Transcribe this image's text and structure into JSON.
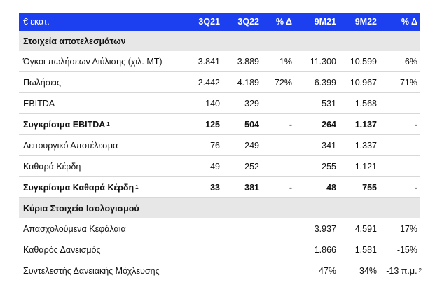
{
  "header": {
    "label": "€ εκατ.",
    "cols": [
      "3Q21",
      "3Q22",
      "% Δ",
      "9M21",
      "9M22",
      "% Δ"
    ]
  },
  "section1": {
    "title": "Στοιχεία αποτελεσμάτων"
  },
  "results": [
    {
      "label": "Όγκοι πωλήσεων Διύλισης (χιλ. ΜΤ)",
      "sup": "",
      "bold": false,
      "values": [
        "3.841",
        "3.889",
        "1%",
        "11.300",
        "10.599",
        "-6%"
      ]
    },
    {
      "label": "Πωλήσεις",
      "sup": "",
      "bold": false,
      "values": [
        "2.442",
        "4.189",
        "72%",
        "6.399",
        "10.967",
        "71%"
      ]
    },
    {
      "label": "EBITDA",
      "sup": "",
      "bold": false,
      "values": [
        "140",
        "329",
        "-",
        "531",
        "1.568",
        "-"
      ]
    },
    {
      "label": "Συγκρίσιμα EBITDA",
      "sup": "1",
      "bold": true,
      "values": [
        "125",
        "504",
        "-",
        "264",
        "1.137",
        "-"
      ]
    },
    {
      "label": "Λειτουργικό Αποτέλεσμα",
      "sup": "",
      "bold": false,
      "values": [
        "76",
        "249",
        "-",
        "341",
        "1.337",
        "-"
      ]
    },
    {
      "label": "Καθαρά Κέρδη",
      "sup": "",
      "bold": false,
      "values": [
        "49",
        "252",
        "-",
        "255",
        "1.121",
        "-"
      ]
    },
    {
      "label": "Συγκρίσιμα Καθαρά Κέρδη",
      "sup": "1",
      "bold": true,
      "values": [
        "33",
        "381",
        "-",
        "48",
        "755",
        "-"
      ]
    }
  ],
  "section2": {
    "title": "Κύρια Στοιχεία Ισολογισμού"
  },
  "balance": [
    {
      "label": "Απασχολούμενα Κεφάλαια",
      "values": [
        "3.937",
        "4.591",
        "17%"
      ]
    },
    {
      "label": "Καθαρός Δανεισμός",
      "values": [
        "1.866",
        "1.581",
        "-15%"
      ]
    },
    {
      "label": "Συντελεστής Δανειακής Μόχλευσης",
      "values": [
        "47%",
        "34%",
        "-13 π.μ."
      ]
    }
  ],
  "footnote_mark": "2"
}
